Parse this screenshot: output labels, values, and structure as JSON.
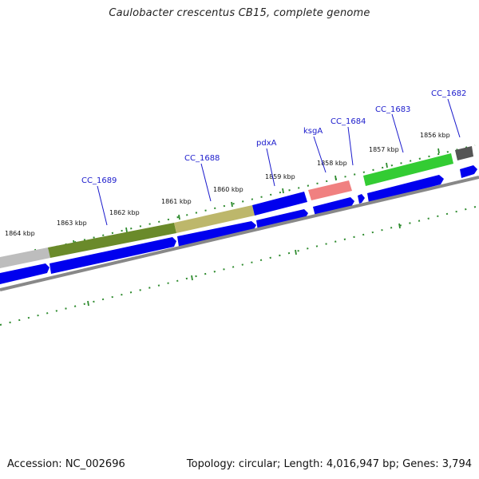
{
  "title": "Caulobacter crescentus CB15, complete genome",
  "accession_label": "Accession: NC_002696",
  "summary_label": "Topology: circular; Length: 4,016,947 bp; Genes: 3,794",
  "kbp_labels": [
    "1864 kbp",
    "1863 kbp",
    "1862 kbp",
    "1861 kbp",
    "1860 kbp",
    "1859 kbp",
    "1858 kbp",
    "1857 kbp",
    "1856 kbp"
  ],
  "gene_labels": [
    "CC_1689",
    "CC_1688",
    "pdxA",
    "ksgA",
    "CC_1684",
    "CC_1683",
    "CC_1682"
  ],
  "colors": {
    "tick": "#2e8b2e",
    "cds_arrow": "#0000ee",
    "backbone": "#888888",
    "label": "#1a1acc"
  }
}
